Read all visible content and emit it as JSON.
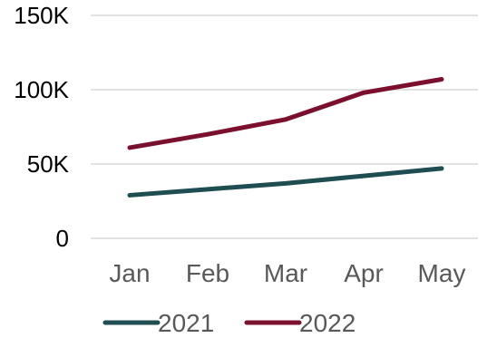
{
  "chart_data": {
    "type": "line",
    "categories": [
      "Jan",
      "Feb",
      "Mar",
      "Apr",
      "May"
    ],
    "y_ticks": [
      {
        "value": 0,
        "label": "0"
      },
      {
        "value": 50000,
        "label": "50K"
      },
      {
        "value": 100000,
        "label": "100K"
      },
      {
        "value": 150000,
        "label": "150K"
      }
    ],
    "ylim": [
      0,
      150000
    ],
    "grid": true,
    "legend_position": "bottom",
    "series": [
      {
        "name": "2021",
        "color": "#1f4e52",
        "values": [
          29000,
          33000,
          37000,
          42000,
          47000
        ]
      },
      {
        "name": "2022",
        "color": "#7a0f2e",
        "values": [
          61000,
          70000,
          80000,
          98000,
          107000
        ]
      }
    ],
    "title": "",
    "xlabel": "",
    "ylabel": ""
  }
}
